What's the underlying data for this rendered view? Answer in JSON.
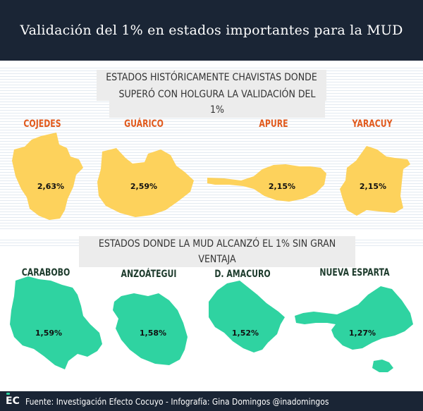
{
  "header": {
    "title": "Validación del 1% en estados importantes para la MUD"
  },
  "section1": {
    "label_line1": "ESTADOS HISTÓRICAMENTE CHAVISTAS DONDE LA MUD",
    "label_line2": "SUPERÓ CON HOLGURA LA VALIDACIÓN DEL 1%",
    "fill_color": "#fdd25c",
    "name_color": "#e15a1d",
    "states": [
      {
        "name": "COJEDES",
        "value": "2,63%"
      },
      {
        "name": "GUÁRICO",
        "value": "2,59%"
      },
      {
        "name": "APURE",
        "value": "2,15%"
      },
      {
        "name": "YARACUY",
        "value": "2,15%"
      }
    ]
  },
  "section2": {
    "label": "ESTADOS DONDE LA MUD ALCANZÓ EL 1% SIN GRAN VENTAJA",
    "fill_color": "#2fd3a1",
    "name_color": "#1d3b2c",
    "states": [
      {
        "name": "CARABOBO",
        "value": "1,59%"
      },
      {
        "name": "ANZOÁTEGUI",
        "value": "1,58%"
      },
      {
        "name": "D. AMACURO",
        "value": "1,52%"
      },
      {
        "name": "NUEVA ESPARTA",
        "value": "1,27%"
      }
    ]
  },
  "footer": {
    "logo": "EC",
    "text": "Fuente: Investigación Efecto Cocuyo - Infografía: Gina Domingos @inadomingos"
  }
}
